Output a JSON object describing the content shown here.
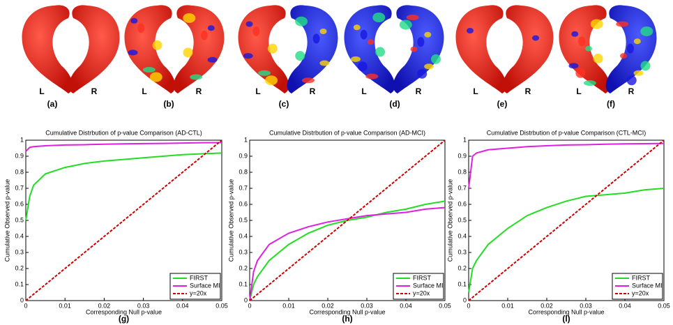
{
  "shapes": [
    {
      "label": "(a)",
      "left": "L",
      "right": "R"
    },
    {
      "label": "(b)",
      "left": "L",
      "right": "R"
    },
    {
      "label": "(c)",
      "left": "L",
      "right": "R"
    },
    {
      "label": "(d)",
      "left": "L",
      "right": "R"
    },
    {
      "label": "(e)",
      "left": "L",
      "right": "R"
    },
    {
      "label": "(f)",
      "left": "L",
      "right": "R"
    }
  ],
  "chart_data": [
    {
      "type": "line",
      "title": "Cumulative Distrbution of p-value Comparison (AD-CTL)",
      "x_label": "Corresponding Null p-value",
      "y_label": "Cumulative Observed p-value",
      "panel_label": "(g)",
      "x": [
        0,
        0.001,
        0.002,
        0.005,
        0.01,
        0.015,
        0.02,
        0.025,
        0.03,
        0.035,
        0.04,
        0.045,
        0.05
      ],
      "series": [
        {
          "name": "FIRST",
          "color": "#22dd22",
          "linestyle": "solid",
          "values": [
            0.5,
            0.65,
            0.72,
            0.79,
            0.83,
            0.855,
            0.87,
            0.88,
            0.89,
            0.9,
            0.91,
            0.915,
            0.92
          ]
        },
        {
          "name": "Surface MI",
          "color": "#e020e0",
          "linestyle": "solid",
          "values": [
            0.93,
            0.955,
            0.96,
            0.965,
            0.97,
            0.972,
            0.975,
            0.977,
            0.979,
            0.98,
            0.982,
            0.984,
            0.985
          ]
        },
        {
          "name": "y=20x",
          "color": "#cc0000",
          "linestyle": "dashed",
          "values": [
            0,
            0.02,
            0.04,
            0.1,
            0.2,
            0.3,
            0.4,
            0.5,
            0.6,
            0.7,
            0.8,
            0.9,
            1
          ]
        }
      ],
      "xlim": [
        0,
        0.05
      ],
      "xticks": [
        0,
        0.01,
        0.02,
        0.03,
        0.04,
        0.05
      ],
      "ylim": [
        0,
        1
      ],
      "yticks": [
        0,
        0.1,
        0.2,
        0.3,
        0.4,
        0.5,
        0.6,
        0.7,
        0.8,
        0.9,
        1
      ],
      "legend": "lower right"
    },
    {
      "type": "line",
      "title": "Cumulative Distrbution of p-value Comparison (AD-MCI)",
      "x_label": "Corresponding Null p-value",
      "y_label": "Cumulative Observed p-value",
      "panel_label": "(h)",
      "x": [
        0,
        0.001,
        0.002,
        0.005,
        0.01,
        0.015,
        0.02,
        0.025,
        0.03,
        0.035,
        0.04,
        0.045,
        0.05
      ],
      "series": [
        {
          "name": "FIRST",
          "color": "#22dd22",
          "linestyle": "solid",
          "values": [
            0,
            0.1,
            0.15,
            0.25,
            0.35,
            0.42,
            0.47,
            0.5,
            0.52,
            0.55,
            0.57,
            0.6,
            0.62
          ]
        },
        {
          "name": "Surface MI",
          "color": "#e020e0",
          "linestyle": "solid",
          "values": [
            0,
            0.18,
            0.25,
            0.35,
            0.42,
            0.46,
            0.49,
            0.51,
            0.53,
            0.54,
            0.55,
            0.57,
            0.58
          ]
        },
        {
          "name": "y=20x",
          "color": "#cc0000",
          "linestyle": "dashed",
          "values": [
            0,
            0.02,
            0.04,
            0.1,
            0.2,
            0.3,
            0.4,
            0.5,
            0.6,
            0.7,
            0.8,
            0.9,
            1
          ]
        }
      ],
      "xlim": [
        0,
        0.05
      ],
      "xticks": [
        0,
        0.01,
        0.02,
        0.03,
        0.04,
        0.05
      ],
      "ylim": [
        0,
        1
      ],
      "yticks": [
        0,
        0.1,
        0.2,
        0.3,
        0.4,
        0.5,
        0.6,
        0.7,
        0.8,
        0.9,
        1
      ],
      "legend": "lower right"
    },
    {
      "type": "line",
      "title": "Cumulative Distrbution of p-value Comparison (CTL-MCI)",
      "x_label": "Corresponding Null p-value",
      "y_label": "Cumulative Observed p-value",
      "panel_label": "(l)",
      "x": [
        0,
        0.001,
        0.002,
        0.005,
        0.01,
        0.015,
        0.02,
        0.025,
        0.03,
        0.035,
        0.04,
        0.045,
        0.05
      ],
      "series": [
        {
          "name": "FIRST",
          "color": "#22dd22",
          "linestyle": "solid",
          "values": [
            0.05,
            0.2,
            0.25,
            0.35,
            0.45,
            0.53,
            0.58,
            0.62,
            0.65,
            0.66,
            0.67,
            0.69,
            0.7
          ]
        },
        {
          "name": "Surface MI",
          "color": "#e020e0",
          "linestyle": "solid",
          "values": [
            0.7,
            0.9,
            0.92,
            0.94,
            0.95,
            0.96,
            0.965,
            0.97,
            0.972,
            0.975,
            0.977,
            0.978,
            0.98
          ]
        },
        {
          "name": "y=20x",
          "color": "#cc0000",
          "linestyle": "dashed",
          "values": [
            0,
            0.02,
            0.04,
            0.1,
            0.2,
            0.3,
            0.4,
            0.5,
            0.6,
            0.7,
            0.8,
            0.9,
            1
          ]
        }
      ],
      "xlim": [
        0,
        0.05
      ],
      "xticks": [
        0,
        0.01,
        0.02,
        0.03,
        0.04,
        0.05
      ],
      "ylim": [
        0,
        1
      ],
      "yticks": [
        0,
        0.1,
        0.2,
        0.3,
        0.4,
        0.5,
        0.6,
        0.7,
        0.8,
        0.9,
        1
      ],
      "legend": "lower right"
    }
  ]
}
